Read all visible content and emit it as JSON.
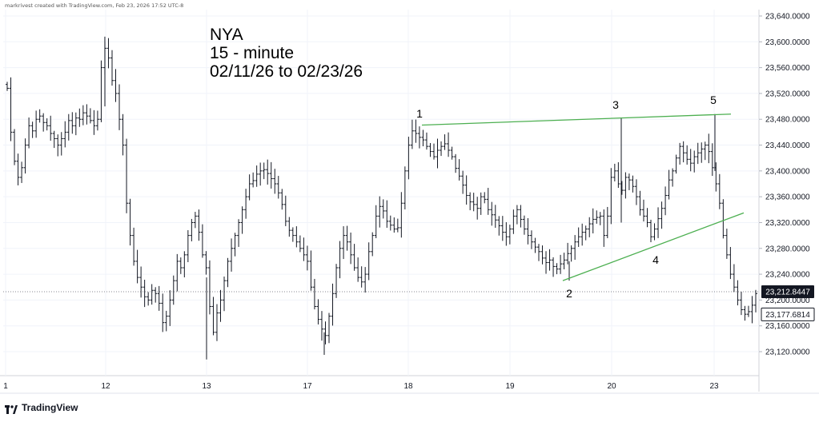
{
  "header": {
    "credit": "markrivest created with TradingView.com, Feb 23, 2026 17:52 UTC-8"
  },
  "annotation": {
    "title_line1": "NYA",
    "title_line2": "15 - minute",
    "title_line3": "02/11/26 to 02/23/26"
  },
  "footer": {
    "brand": "TradingView"
  },
  "colors": {
    "trendline": "#4caf50",
    "bars": "#131722",
    "price_badge_bg": "#131722",
    "price_badge_text": "#ffffff"
  },
  "chart_data": {
    "type": "ohlc-bar",
    "symbol": "NYA",
    "interval": "15 - minute",
    "date_range": "02/11/26 to 02/23/26",
    "x_tick_labels": [
      "1",
      "12",
      "13",
      "17",
      "18",
      "19",
      "20",
      "23"
    ],
    "y_tick_labels": [
      "23,120.0000",
      "23,160.0000",
      "23,200.0000",
      "23,240.0000",
      "23,280.0000",
      "23,320.0000",
      "23,360.0000",
      "23,400.0000",
      "23,440.0000",
      "23,480.0000",
      "23,520.0000",
      "23,560.0000",
      "23,600.0000",
      "23,640.0000"
    ],
    "ylim": [
      23095,
      23645
    ],
    "last_price": 23212.8447,
    "last_price_label": "23,212.8447",
    "secondary_price": 23177.6814,
    "secondary_price_label": "23,177.6814",
    "wave_labels": [
      {
        "label": "1",
        "day": "18",
        "price": 23471
      },
      {
        "label": "2",
        "day": "19",
        "price": 23230
      },
      {
        "label": "3",
        "day": "20",
        "price": 23482
      },
      {
        "label": "4",
        "day": "20",
        "price": 23287
      },
      {
        "label": "5",
        "day": "23",
        "price": 23488
      }
    ],
    "trendlines": [
      {
        "name": "upper",
        "from": {
          "label": "1",
          "price": 23471
        },
        "to": {
          "label": "5",
          "price": 23488
        }
      },
      {
        "name": "lower",
        "from": {
          "label": "2",
          "price": 23230
        },
        "to": {
          "label": "beyond 5",
          "price": 23335
        }
      }
    ],
    "series_closes": [
      23528,
      23460,
      23415,
      23390,
      23405,
      23440,
      23470,
      23462,
      23480,
      23485,
      23475,
      23470,
      23458,
      23450,
      23440,
      23450,
      23460,
      23478,
      23470,
      23482,
      23480,
      23490,
      23485,
      23478,
      23470,
      23480,
      23560,
      23590,
      23575,
      23540,
      23520,
      23480,
      23440,
      23350,
      23300,
      23260,
      23235,
      23220,
      23205,
      23200,
      23215,
      23210,
      23195,
      23165,
      23175,
      23200,
      23230,
      23260,
      23250,
      23270,
      23300,
      23320,
      23330,
      23305,
      23270,
      23250,
      23190,
      23150,
      23180,
      23200,
      23230,
      23260,
      23280,
      23300,
      23320,
      23340,
      23360,
      23380,
      23385,
      23395,
      23400,
      23402,
      23396,
      23388,
      23380,
      23366,
      23348,
      23322,
      23308,
      23300,
      23290,
      23280,
      23270,
      23260,
      23220,
      23190,
      23170,
      23155,
      23145,
      23175,
      23210,
      23250,
      23280,
      23300,
      23290,
      23270,
      23250,
      23235,
      23228,
      23240,
      23275,
      23300,
      23330,
      23345,
      23338,
      23322,
      23316,
      23310,
      23312,
      23350,
      23400,
      23440,
      23462,
      23458,
      23452,
      23448,
      23438,
      23430,
      23422,
      23432,
      23438,
      23442,
      23432,
      23422,
      23404,
      23392,
      23378,
      23362,
      23352,
      23348,
      23342,
      23360,
      23356,
      23340,
      23332,
      23324,
      23315,
      23305,
      23298,
      23310,
      23330,
      23340,
      23325,
      23310,
      23300,
      23290,
      23282,
      23275,
      23265,
      23258,
      23262,
      23252,
      23248,
      23256,
      23262,
      23272,
      23280,
      23290,
      23298,
      23305,
      23310,
      23318,
      23325,
      23328,
      23330,
      23300,
      23330,
      23390,
      23400,
      23380,
      23370,
      23390,
      23386,
      23376,
      23360,
      23340,
      23330,
      23320,
      23298,
      23310,
      23326,
      23342,
      23362,
      23386,
      23400,
      23420,
      23438,
      23428,
      23418,
      23412,
      23422,
      23428,
      23434,
      23440,
      23430,
      23405,
      23380,
      23350,
      23300,
      23270,
      23240,
      23220,
      23200,
      23185,
      23178,
      23182,
      23192,
      23210
    ]
  }
}
